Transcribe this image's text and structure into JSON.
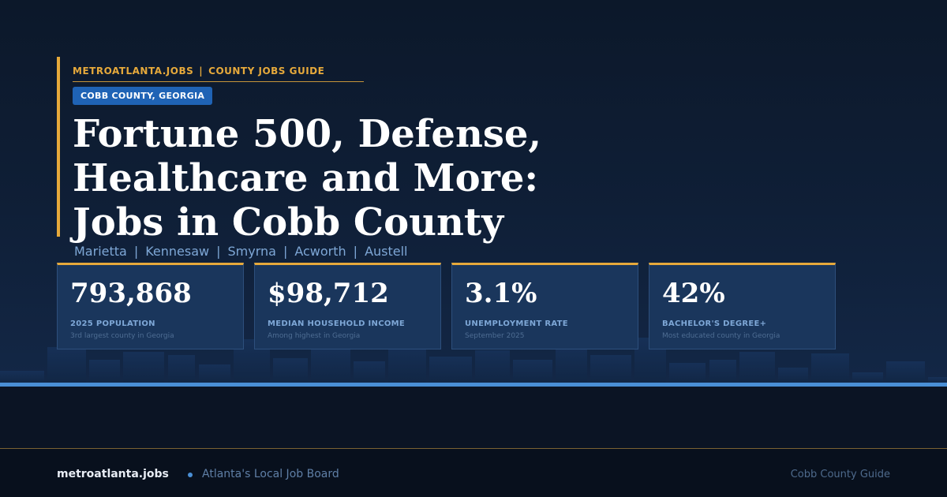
{
  "header": {
    "brand": "METROATLANTA.JOBS",
    "separator": "|",
    "section": "COUNTY JOBS GUIDE",
    "county_badge": "COBB COUNTY, GEORGIA"
  },
  "headline": {
    "line1": "Fortune 500, Defense,",
    "line2": "Healthcare and More:",
    "line3": "Jobs in Cobb County"
  },
  "cities": [
    "Marietta",
    "Kennesaw",
    "Smyrna",
    "Acworth",
    "Austell"
  ],
  "city_separator": "|",
  "stats": [
    {
      "value": "793,868",
      "label": "2025 POPULATION",
      "note": "3rd largest county in Georgia"
    },
    {
      "value": "$98,712",
      "label": "MEDIAN HOUSEHOLD INCOME",
      "note": "Among highest in Georgia"
    },
    {
      "value": "3.1%",
      "label": "UNEMPLOYMENT RATE",
      "note": "September 2025"
    },
    {
      "value": "42%",
      "label": "BACHELOR'S DEGREE+",
      "note": "Most educated county in Georgia"
    }
  ],
  "footer": {
    "domain": "metroatlanta.jobs",
    "tagline": "Atlanta's Local Job Board",
    "right_label": "Cobb County Guide"
  },
  "colors": {
    "accent": "#e6a93b",
    "badge": "#1f63b5",
    "card": "#1a365c",
    "band": "#4a8fd6"
  }
}
